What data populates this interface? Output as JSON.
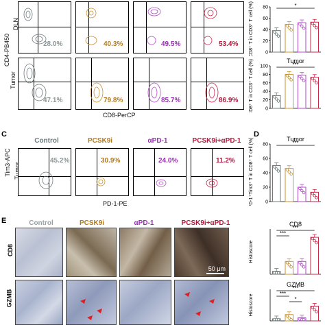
{
  "panel_letters": {
    "c": "C",
    "d": "D",
    "e": "E"
  },
  "conditions": [
    "Control",
    "PCSK9i",
    "αPD-1",
    "PCSK9i+αPD-1"
  ],
  "colors": {
    "control": "#6d7b7b",
    "pcsk9i": "#c8922e",
    "apd1": "#b04ac6",
    "combo": "#c8264a"
  },
  "panel_b": {
    "row_labels": [
      "DLN",
      "Tumor"
    ],
    "y_axis": "CD4-PB450",
    "x_axis": "CD8-PerCP",
    "dln_percents": [
      "28.0%",
      "40.3%",
      "49.5%",
      "53.4%"
    ],
    "tumor_percents": [
      "47.1%",
      "79.8%",
      "85.7%",
      "86.9%"
    ]
  },
  "panel_c": {
    "row_label": "Tumor",
    "y_axis": "Tim3-APC",
    "x_axis": "PD-1-PE",
    "percents": [
      "45.2%",
      "30.9%",
      "24.0%",
      "11.2%"
    ]
  },
  "panel_e": {
    "row_labels": [
      "CD8",
      "GZMB"
    ],
    "scale_bar": "50 μm"
  },
  "chart_data": [
    {
      "type": "bar",
      "id": "dln_cd8",
      "title": "",
      "ylabel": "CD8⁺ T in CD3⁺ T cell (%)",
      "ylim": [
        0,
        80
      ],
      "yticks": [
        "0",
        "20",
        "40",
        "60",
        "80"
      ],
      "categories": [
        "Control",
        "PCSK9i",
        "αPD-1",
        "PCSK9i+αPD-1"
      ],
      "values": [
        38,
        49,
        52,
        53
      ],
      "significance": [
        {
          "from": 0,
          "to": 3,
          "label": "*"
        }
      ]
    },
    {
      "type": "bar",
      "id": "tumor_cd8",
      "title": "Tumor",
      "ylabel": "CD8⁺ T in CD3⁺ T cell (%)",
      "ylim": [
        0,
        100
      ],
      "yticks": [
        "0",
        "20",
        "40",
        "60",
        "80",
        "100"
      ],
      "categories": [
        "Control",
        "PCSK9i",
        "αPD-1",
        "PCSK9i+αPD-1"
      ],
      "values": [
        30,
        80,
        78,
        73
      ],
      "significance": [
        {
          "from": 0,
          "to": 3,
          "label": "***"
        }
      ]
    },
    {
      "type": "bar",
      "id": "tumor_pd1_tim3",
      "title": "Tumor",
      "ylabel": "PD-1⁺Tim3⁺ T in CD8⁺ T cell (%)",
      "ylim": [
        0,
        80
      ],
      "yticks": [
        "0",
        "20",
        "40",
        "60",
        "80"
      ],
      "categories": [
        "Control",
        "PCSK9i",
        "αPD-1",
        "PCSK9i+αPD-1"
      ],
      "values": [
        50,
        46,
        20,
        13
      ],
      "significance": [
        {
          "from": 0,
          "to": 3,
          "label": "***"
        }
      ]
    },
    {
      "type": "bar",
      "id": "cd8_histoscore",
      "title": "CD8",
      "ylabel": "Histoscore",
      "ylim": [
        0,
        300
      ],
      "yticks": [],
      "categories": [
        "Control",
        "PCSK9i",
        "αPD-1",
        "PCSK9i+αPD-1"
      ],
      "values": [
        20,
        85,
        85,
        245
      ],
      "significance": [
        {
          "from": 0,
          "to": 3,
          "label": "***"
        },
        {
          "from": 0,
          "to": 1,
          "label": "***"
        }
      ]
    },
    {
      "type": "bar",
      "id": "gzmb_histoscore",
      "title": "GZMB",
      "ylabel": "Histoscore",
      "ylim": [
        0,
        300
      ],
      "yticks": [],
      "categories": [
        "Control",
        "PCSK9i",
        "αPD-1",
        "PCSK9i+αPD-1"
      ],
      "values": [
        20,
        60,
        30,
        140
      ],
      "significance": [
        {
          "from": 0,
          "to": 3,
          "label": "***"
        },
        {
          "from": 0,
          "to": 1,
          "label": "***"
        },
        {
          "from": 1,
          "to": 2,
          "label": "*"
        }
      ]
    }
  ]
}
